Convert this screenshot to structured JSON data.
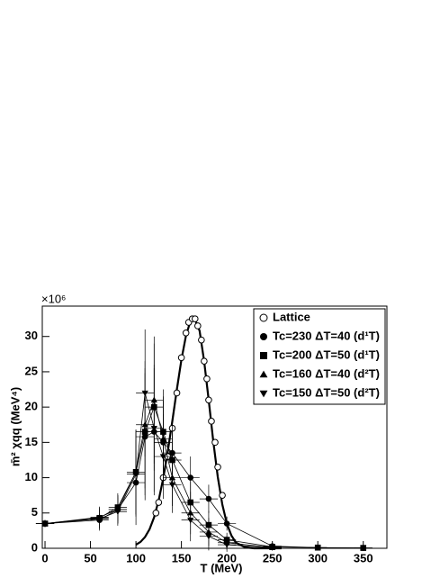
{
  "chart_data": {
    "type": "scatter",
    "multiplier": "×10⁶",
    "x_label": "T (MeV)",
    "y_label": "m̄² χqq (MeV⁴)",
    "xlim": [
      -3,
      376
    ],
    "ylim": [
      0,
      34.3
    ],
    "xticks": [
      0,
      50,
      100,
      150,
      200,
      250,
      300,
      350
    ],
    "yticks": [
      0,
      5,
      10,
      15,
      20,
      25,
      30
    ],
    "legend": "upper right",
    "series": [
      {
        "name": "Lattice",
        "marker": "open-circle",
        "color": "#000",
        "x": [
          122,
          125,
          130,
          135,
          140,
          145,
          150,
          155,
          158,
          162,
          165,
          168,
          172,
          175,
          178,
          180,
          183,
          187,
          190,
          195
        ],
        "values": [
          5,
          6.5,
          10,
          13,
          17,
          22,
          27,
          30.5,
          32,
          32.5,
          32.5,
          31.5,
          29.5,
          26.5,
          24,
          21,
          18,
          15,
          11.5,
          7.5
        ]
      },
      {
        "name": "Tc=230 ΔT=40 (d¹T)",
        "marker": "circle",
        "color": "#000",
        "x": [
          0,
          60,
          80,
          100,
          110,
          120,
          130,
          140,
          160,
          180,
          200,
          250,
          300,
          350
        ],
        "values": [
          3.5,
          4,
          5.5,
          9.3,
          15.8,
          16.5,
          15,
          13.5,
          10,
          7,
          3.5,
          0.3,
          0.1,
          0.05
        ],
        "yerr": [
          0.5,
          1.5,
          2,
          6,
          9,
          9,
          6,
          4,
          3,
          2,
          1,
          0.3,
          0.3,
          0.3
        ],
        "xerr": [
          10,
          10,
          10,
          10,
          10,
          10,
          10,
          10,
          10,
          10,
          10,
          10,
          10,
          10
        ]
      },
      {
        "name": "Tc=200 ΔT=50 (d¹T)",
        "marker": "square",
        "color": "#000",
        "x": [
          0,
          60,
          80,
          100,
          110,
          120,
          130,
          140,
          160,
          180,
          200,
          250,
          300,
          350
        ],
        "values": [
          3.5,
          4.3,
          5.8,
          10.8,
          16.5,
          20,
          16.5,
          12.5,
          6.5,
          3.3,
          1.2,
          0.2,
          0.1,
          0.05
        ],
        "yerr": [
          0.5,
          1.5,
          2,
          6,
          9,
          9,
          6,
          4,
          3,
          2,
          1,
          0.3,
          0.3,
          0.3
        ],
        "xerr": [
          10,
          10,
          10,
          10,
          10,
          10,
          10,
          10,
          10,
          10,
          10,
          10,
          10,
          10
        ]
      },
      {
        "name": "Tc=160 ΔT=40 (d²T)",
        "marker": "triangle-up",
        "color": "#000",
        "x": [
          0,
          60,
          80,
          100,
          110,
          120,
          130,
          140,
          160,
          180,
          200,
          250
        ],
        "values": [
          3.5,
          4.4,
          5.5,
          10.8,
          17.5,
          21,
          15.5,
          10,
          5,
          2.3,
          0.8,
          0.1
        ],
        "yerr": [
          0.5,
          1.5,
          2,
          6,
          9,
          9,
          6,
          4,
          3,
          2,
          1,
          0.3
        ],
        "xerr": [
          10,
          10,
          10,
          10,
          10,
          10,
          10,
          10,
          10,
          10,
          10,
          10
        ]
      },
      {
        "name": "Tc=150 ΔT=50 (d²T)",
        "marker": "triangle-down",
        "color": "#000",
        "x": [
          0,
          60,
          80,
          100,
          110,
          120,
          130,
          140,
          160,
          180,
          200,
          250
        ],
        "values": [
          3.5,
          4.2,
          5.2,
          10.5,
          22,
          17,
          13,
          9,
          4,
          1.7,
          0.5,
          0.1
        ],
        "yerr": [
          0.5,
          1.5,
          2,
          6,
          9,
          9,
          6,
          4,
          3,
          2,
          1,
          0.3
        ],
        "xerr": [
          10,
          10,
          10,
          10,
          10,
          10,
          10,
          10,
          10,
          10,
          10,
          10
        ]
      }
    ],
    "curve": {
      "color": "#000",
      "x": [
        100,
        105,
        110,
        115,
        120,
        125,
        130,
        135,
        140,
        145,
        150,
        155,
        160,
        164,
        170,
        175,
        180,
        185,
        190,
        195,
        200,
        205,
        210,
        220,
        230,
        240,
        260
      ],
      "values": [
        0.5,
        0.9,
        1.6,
        2.7,
        4.4,
        6.8,
        9.9,
        13.7,
        18,
        22.5,
        26.7,
        30.1,
        32.2,
        32.7,
        30.8,
        26.5,
        21,
        15.2,
        10.1,
        6.2,
        3.5,
        1.8,
        0.8,
        0.14,
        0,
        0,
        0
      ]
    }
  }
}
